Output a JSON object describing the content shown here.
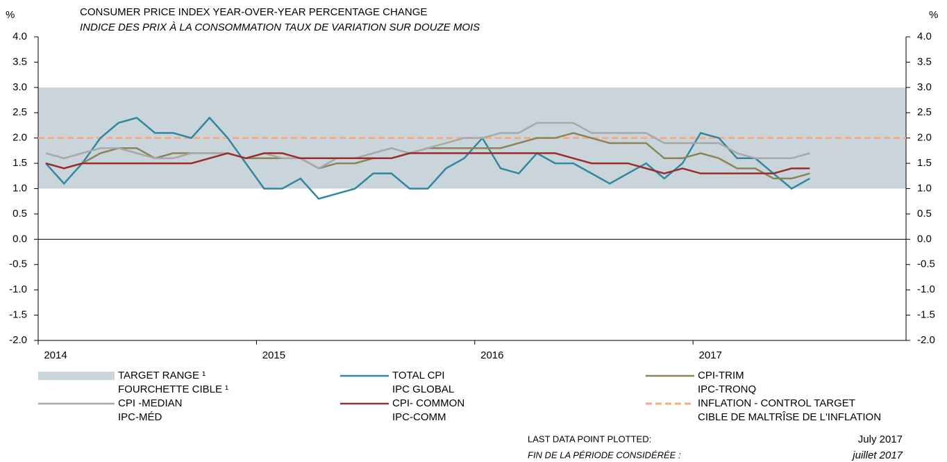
{
  "chart_data": {
    "type": "line",
    "title": "CONSUMER PRICE INDEX YEAR-OVER-YEAR PERCENTAGE CHANGE",
    "subtitle": "INDICE DES PRIX À LA CONSOMMATION TAUX DE VARIATION SUR DOUZE MOIS",
    "ylabel": "%",
    "y2label": "%",
    "categories": [
      "2014",
      null,
      null,
      null,
      null,
      null,
      null,
      null,
      null,
      null,
      null,
      null,
      "2015",
      null,
      null,
      null,
      null,
      null,
      null,
      null,
      null,
      null,
      null,
      null,
      "2016",
      null,
      null,
      null,
      null,
      null,
      null,
      null,
      null,
      null,
      null,
      null,
      "2017",
      null,
      null,
      null,
      null,
      null,
      null
    ],
    "ylim": [
      -2,
      4
    ],
    "yticks": [
      {
        "value": -2,
        "label": "-2.0"
      },
      {
        "value": -1.5,
        "label": "-1.5"
      },
      {
        "value": -1,
        "label": "-1.0"
      },
      {
        "value": -0.5,
        "label": "-0.5"
      },
      {
        "value": 0,
        "label": "0.0"
      },
      {
        "value": 0.5,
        "label": "0.5"
      },
      {
        "value": 1,
        "label": "1.0"
      },
      {
        "value": 1.5,
        "label": "1.5"
      },
      {
        "value": 2,
        "label": "2.0"
      },
      {
        "value": 2.5,
        "label": "2.5"
      },
      {
        "value": 3,
        "label": "3.0"
      },
      {
        "value": 3.5,
        "label": "3.5"
      },
      {
        "value": 4,
        "label": "4.0"
      }
    ],
    "y2lim": [
      -2,
      4
    ],
    "y2ticks": [
      {
        "value": -2,
        "label": "-2.0"
      },
      {
        "value": -1.5,
        "label": "-1.5"
      },
      {
        "value": -1,
        "label": "-1.0"
      },
      {
        "value": -0.5,
        "label": "-0.5"
      },
      {
        "value": 0,
        "label": "0.0"
      },
      {
        "value": 0.5,
        "label": "0.5"
      },
      {
        "value": 1,
        "label": "1.0"
      },
      {
        "value": 1.5,
        "label": "1.5"
      },
      {
        "value": 2,
        "label": "2.0"
      },
      {
        "value": 2.5,
        "label": "2.5"
      },
      {
        "value": 3,
        "label": "3.0"
      },
      {
        "value": 3.5,
        "label": "3.5"
      },
      {
        "value": 4,
        "label": "4.0"
      }
    ],
    "target_range": {
      "name": "TARGET RANGE ¹",
      "name_fr": "FOURCHETTE CIBLE ¹",
      "values": [
        1,
        3
      ],
      "color": "#c9d4db"
    },
    "inflation_target": {
      "name": "INFLATION - CONTROL TARGET",
      "name_fr": "CIBLE DE MALTRÎSE DE L'INFLATION",
      "value": 2,
      "color": "#f6ab86"
    },
    "series": [
      {
        "name": "TOTAL CPI",
        "name_fr": "IPC GLOBAL",
        "color": "#2f87a0",
        "values": [
          1.5,
          1.1,
          1.5,
          2.0,
          2.3,
          2.4,
          2.1,
          2.1,
          2.0,
          2.4,
          2.0,
          1.5,
          1.0,
          1.0,
          1.2,
          0.8,
          0.9,
          1.0,
          1.3,
          1.3,
          1.0,
          1.0,
          1.4,
          1.6,
          2.0,
          1.4,
          1.3,
          1.7,
          1.5,
          1.5,
          1.3,
          1.1,
          1.3,
          1.5,
          1.2,
          1.5,
          2.1,
          2.0,
          1.6,
          1.6,
          1.3,
          1.0,
          1.2
        ]
      },
      {
        "name": "CPI-TRIM",
        "name_fr": "IPC-TRONQ",
        "color": "#8c8454",
        "values": [
          1.5,
          1.4,
          1.5,
          1.7,
          1.8,
          1.8,
          1.6,
          1.7,
          1.7,
          1.7,
          1.7,
          1.6,
          1.6,
          1.6,
          1.6,
          1.4,
          1.5,
          1.5,
          1.6,
          1.6,
          1.7,
          1.8,
          1.8,
          1.8,
          1.8,
          1.8,
          1.9,
          2.0,
          2.0,
          2.1,
          2.0,
          1.9,
          1.9,
          1.9,
          1.6,
          1.6,
          1.7,
          1.6,
          1.4,
          1.4,
          1.2,
          1.2,
          1.3
        ]
      },
      {
        "name": "CPI -MEDIAN",
        "name_fr": "IPC-MÉD",
        "color": "#a8a8a8",
        "values": [
          1.7,
          1.6,
          1.7,
          1.8,
          1.8,
          1.7,
          1.6,
          1.6,
          1.7,
          1.7,
          1.7,
          1.6,
          1.7,
          1.6,
          1.6,
          1.4,
          1.6,
          1.6,
          1.7,
          1.8,
          1.7,
          1.8,
          1.9,
          2.0,
          2.0,
          2.1,
          2.1,
          2.3,
          2.3,
          2.3,
          2.1,
          2.1,
          2.1,
          2.1,
          1.9,
          1.9,
          1.9,
          1.9,
          1.7,
          1.6,
          1.6,
          1.6,
          1.7
        ]
      },
      {
        "name": "CPI- COMMON",
        "name_fr": "IPC-COMM",
        "color": "#9c2c2c",
        "values": [
          1.5,
          1.4,
          1.5,
          1.5,
          1.5,
          1.5,
          1.5,
          1.5,
          1.5,
          1.6,
          1.7,
          1.6,
          1.7,
          1.7,
          1.6,
          1.6,
          1.6,
          1.6,
          1.6,
          1.6,
          1.7,
          1.7,
          1.7,
          1.7,
          1.7,
          1.7,
          1.7,
          1.7,
          1.7,
          1.6,
          1.5,
          1.5,
          1.5,
          1.4,
          1.3,
          1.4,
          1.3,
          1.3,
          1.3,
          1.3,
          1.3,
          1.4,
          1.4
        ]
      }
    ],
    "footer": {
      "label": "LAST DATA POINT PLOTTED:",
      "label_fr": "FIN DE LA PÉRIODE CONSIDÉRÉE :",
      "date": "July 2017",
      "date_fr": "juillet 2017"
    }
  }
}
